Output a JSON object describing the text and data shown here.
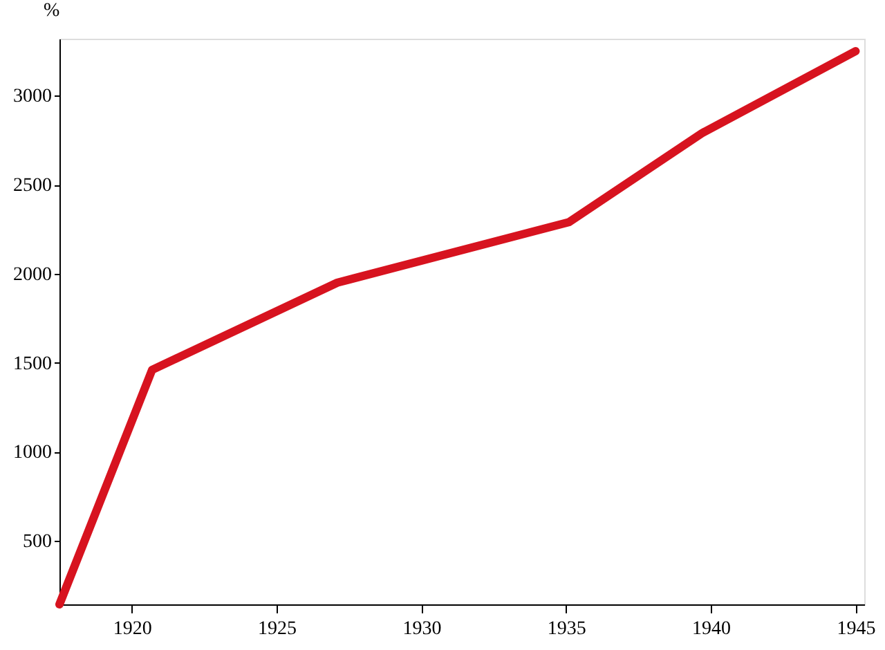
{
  "chart_data": {
    "type": "line",
    "ylabel": "%",
    "x": [
      1917.5,
      1920.7,
      1927.1,
      1935.1,
      1939.7,
      1945
    ],
    "series": [
      {
        "color": "#d7131f",
        "values": [
          143,
          1460,
          1950,
          2290,
          2790,
          3250
        ]
      }
    ],
    "xlim": [
      1917.5,
      1945.3
    ],
    "xticks": [
      1920,
      1925,
      1930,
      1935,
      1940,
      1945
    ],
    "ylim": [
      143,
      3320
    ],
    "yticks": [
      500,
      1000,
      1500,
      2000,
      2500,
      3000
    ],
    "grid": false,
    "marker": "none",
    "line_style": "solid"
  }
}
